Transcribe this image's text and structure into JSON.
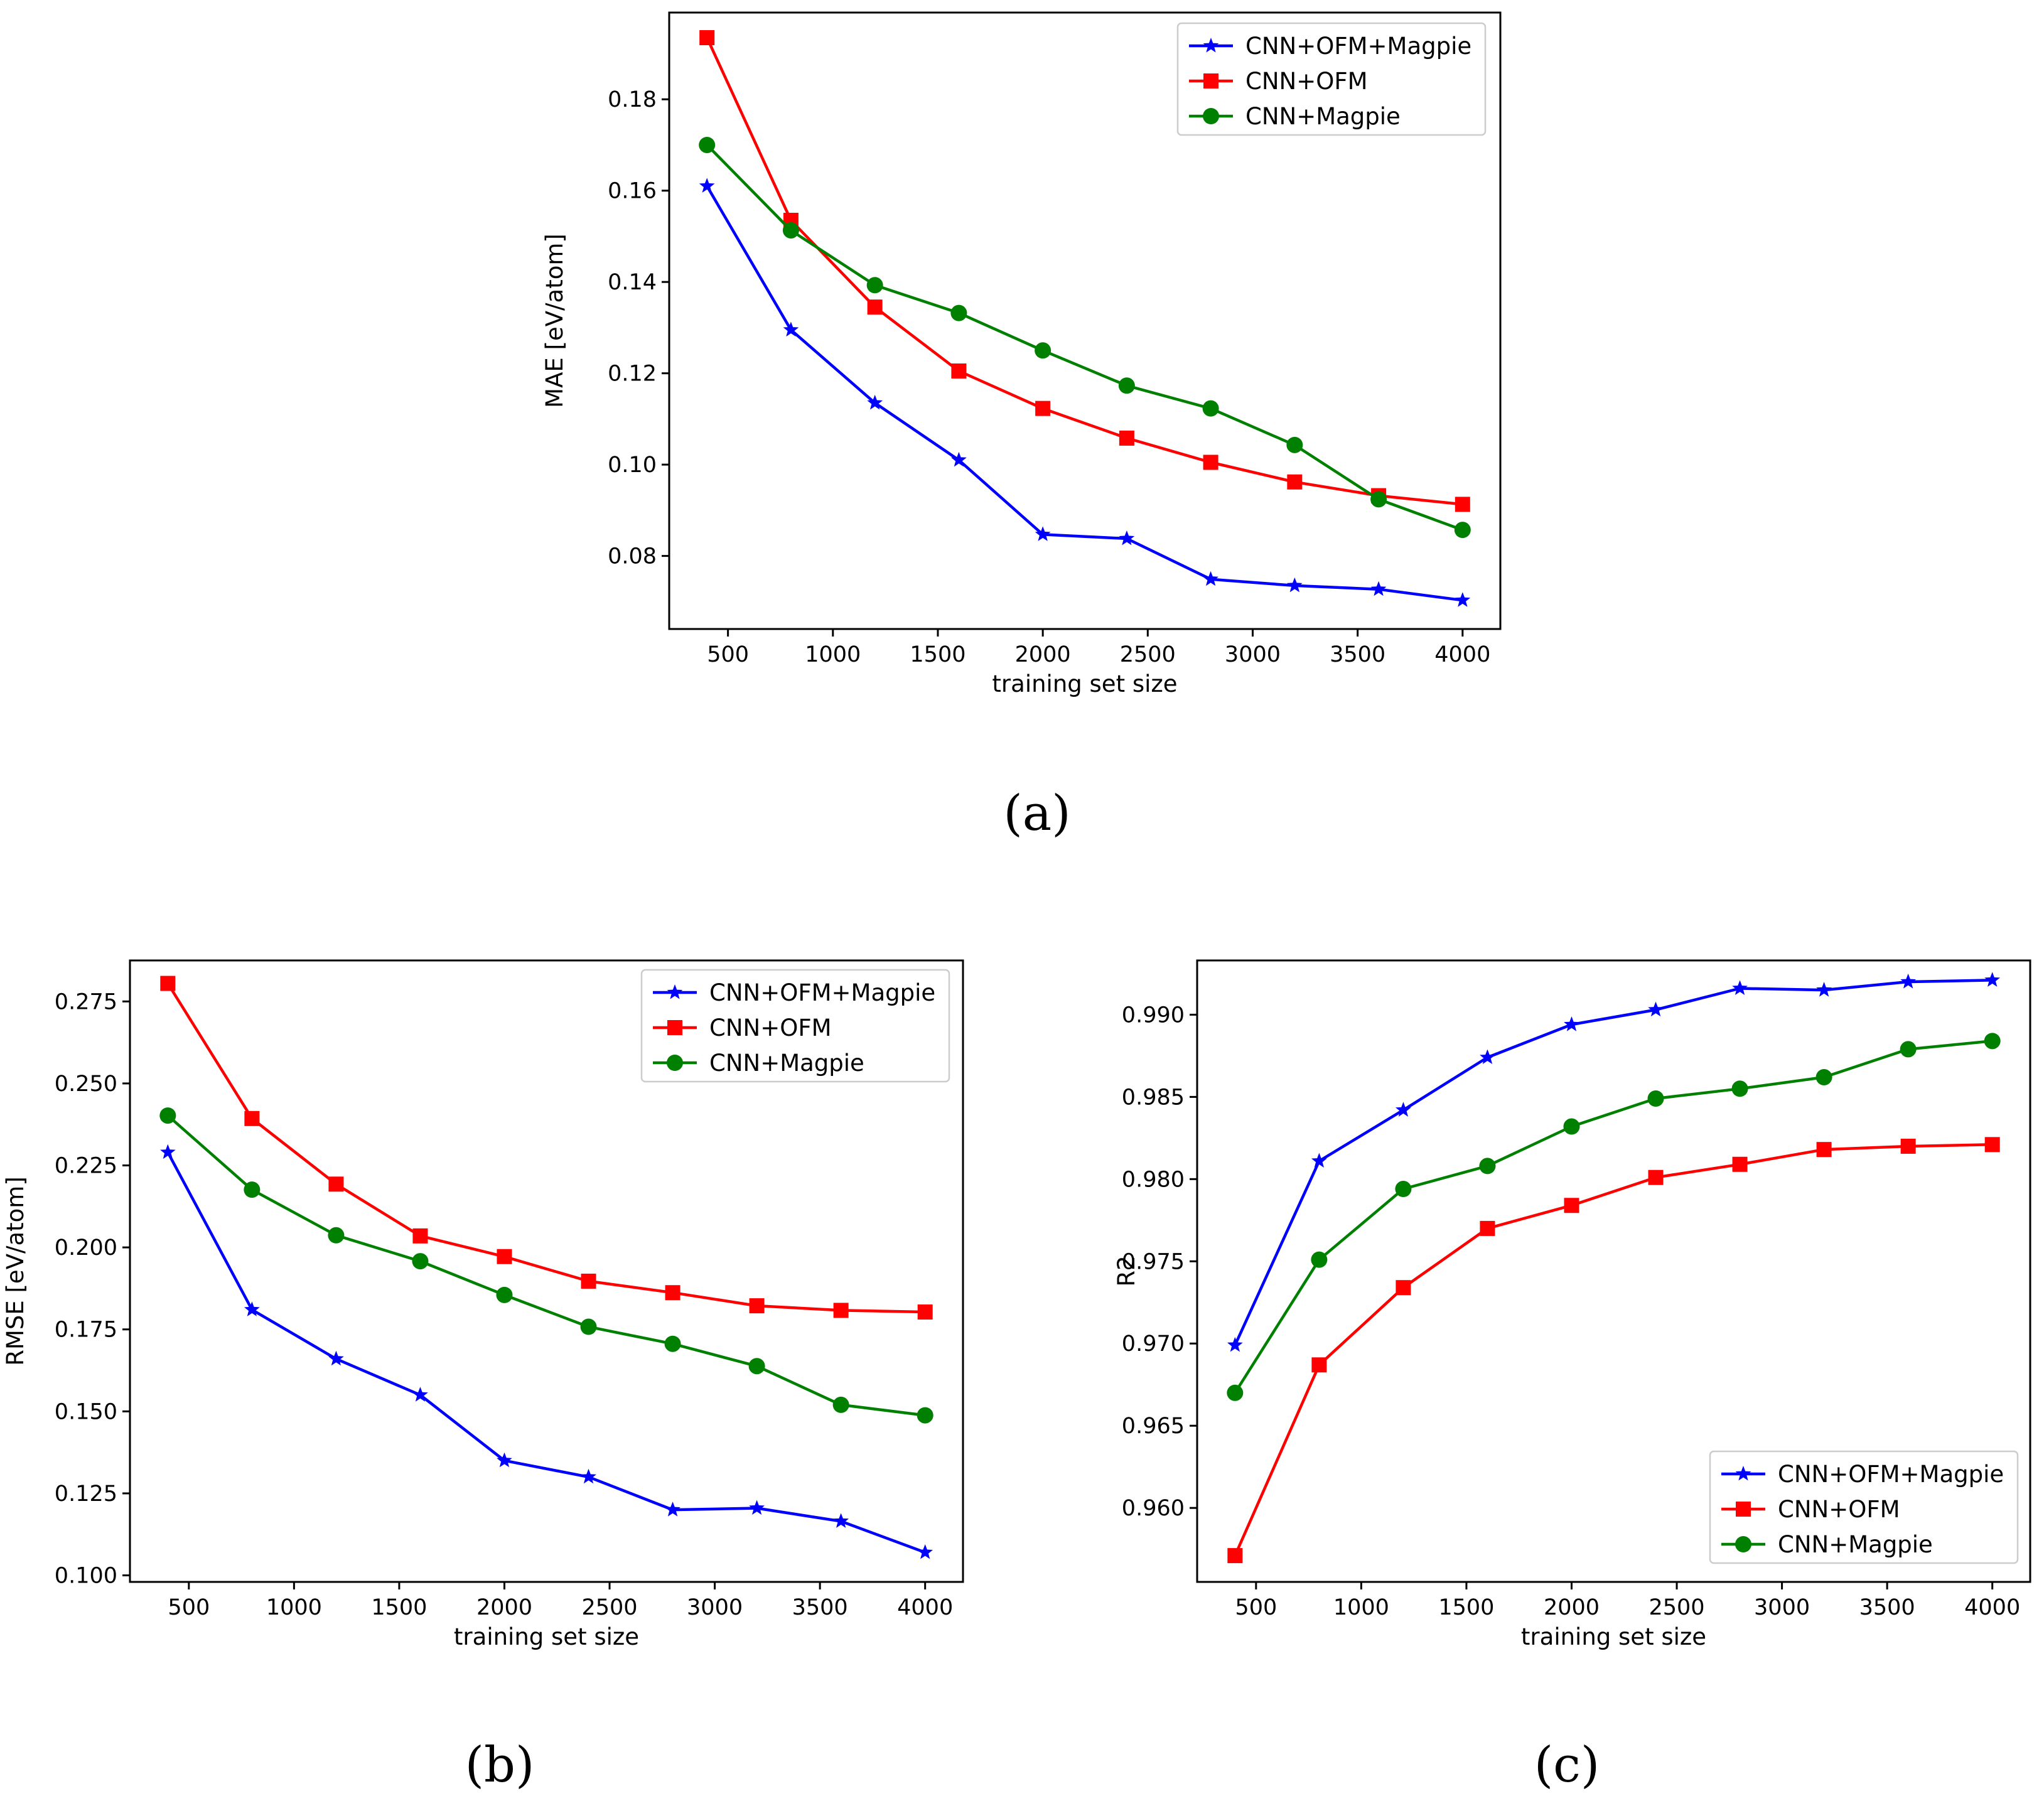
{
  "figure": {
    "panel_captions": [
      "(a)",
      "(b)",
      "(c)"
    ]
  },
  "styles": {
    "series_colors": {
      "CNN+OFM+Magpie": "#0000ff",
      "CNN+OFM": "#ff0000",
      "CNN+Magpie": "#008000"
    },
    "series_markers": {
      "CNN+OFM+Magpie": "star",
      "CNN+OFM": "square",
      "CNN+Magpie": "circle"
    },
    "axes_color": "#000000",
    "background": "#ffffff"
  },
  "chart_data": [
    {
      "id": "a",
      "caption": "(a)",
      "type": "line",
      "xlabel": "training set size",
      "ylabel": "MAE [eV/atom]",
      "xlim": [
        220,
        4180
      ],
      "ylim": [
        0.064,
        0.199
      ],
      "xticks": [
        500,
        1000,
        1500,
        2000,
        2500,
        3000,
        3500,
        4000
      ],
      "xtick_labels": [
        "500",
        "1000",
        "1500",
        "2000",
        "2500",
        "3000",
        "3500",
        "4000"
      ],
      "yticks": [
        0.08,
        0.1,
        0.12,
        0.14,
        0.16,
        0.18
      ],
      "ytick_labels": [
        "0.08",
        "0.10",
        "0.12",
        "0.14",
        "0.16",
        "0.18"
      ],
      "legend_position": "upper right",
      "x": [
        400,
        800,
        1200,
        1600,
        2000,
        2400,
        2800,
        3200,
        3600,
        4000
      ],
      "series": [
        {
          "name": "CNN+OFM+Magpie",
          "values": [
            0.161,
            0.1295,
            0.1135,
            0.101,
            0.0847,
            0.0838,
            0.0749,
            0.0735,
            0.0727,
            0.0703
          ]
        },
        {
          "name": "CNN+OFM",
          "values": [
            0.1935,
            0.1535,
            0.1345,
            0.1205,
            0.1123,
            0.1058,
            0.1005,
            0.0962,
            0.0932,
            0.0913
          ]
        },
        {
          "name": "CNN+Magpie",
          "values": [
            0.17,
            0.1513,
            0.1393,
            0.1332,
            0.125,
            0.1173,
            0.1123,
            0.1043,
            0.0924,
            0.0857
          ]
        }
      ]
    },
    {
      "id": "b",
      "caption": "(b)",
      "type": "line",
      "xlabel": "training set size",
      "ylabel": "RMSE [eV/atom]",
      "xlim": [
        220,
        4180
      ],
      "ylim": [
        0.098,
        0.2875
      ],
      "xticks": [
        500,
        1000,
        1500,
        2000,
        2500,
        3000,
        3500,
        4000
      ],
      "xtick_labels": [
        "500",
        "1000",
        "1500",
        "2000",
        "2500",
        "3000",
        "3500",
        "4000"
      ],
      "yticks": [
        0.1,
        0.125,
        0.15,
        0.175,
        0.2,
        0.225,
        0.25,
        0.275
      ],
      "ytick_labels": [
        "0.100",
        "0.125",
        "0.150",
        "0.175",
        "0.200",
        "0.225",
        "0.250",
        "0.275"
      ],
      "legend_position": "upper right",
      "x": [
        400,
        800,
        1200,
        1600,
        2000,
        2400,
        2800,
        3200,
        3600,
        4000
      ],
      "series": [
        {
          "name": "CNN+OFM+Magpie",
          "values": [
            0.229,
            0.181,
            0.166,
            0.155,
            0.135,
            0.13,
            0.12,
            0.1205,
            0.1165,
            0.107
          ]
        },
        {
          "name": "CNN+OFM",
          "values": [
            0.2805,
            0.2393,
            0.2193,
            0.2035,
            0.1972,
            0.1897,
            0.1862,
            0.1822,
            0.1808,
            0.1803
          ]
        },
        {
          "name": "CNN+Magpie",
          "values": [
            0.2402,
            0.2176,
            0.2037,
            0.1958,
            0.1855,
            0.1758,
            0.1706,
            0.1638,
            0.152,
            0.1488
          ]
        }
      ]
    },
    {
      "id": "c",
      "caption": "(c)",
      "type": "line",
      "xlabel": "training set size",
      "ylabel": "R2",
      "xlim": [
        220,
        4180
      ],
      "ylim": [
        0.9555,
        0.9933
      ],
      "xticks": [
        500,
        1000,
        1500,
        2000,
        2500,
        3000,
        3500,
        4000
      ],
      "xtick_labels": [
        "500",
        "1000",
        "1500",
        "2000",
        "2500",
        "3000",
        "3500",
        "4000"
      ],
      "yticks": [
        0.96,
        0.965,
        0.97,
        0.975,
        0.98,
        0.985,
        0.99
      ],
      "ytick_labels": [
        "0.960",
        "0.965",
        "0.970",
        "0.975",
        "0.980",
        "0.985",
        "0.990"
      ],
      "legend_position": "lower right",
      "x": [
        400,
        800,
        1200,
        1600,
        2000,
        2400,
        2800,
        3200,
        3600,
        4000
      ],
      "series": [
        {
          "name": "CNN+OFM+Magpie",
          "values": [
            0.9699,
            0.9811,
            0.9842,
            0.9874,
            0.9894,
            0.9903,
            0.9916,
            0.9915,
            0.992,
            0.9921
          ]
        },
        {
          "name": "CNN+OFM",
          "values": [
            0.9571,
            0.9687,
            0.9734,
            0.977,
            0.9784,
            0.9801,
            0.9809,
            0.9818,
            0.982,
            0.9821
          ]
        },
        {
          "name": "CNN+Magpie",
          "values": [
            0.967,
            0.9751,
            0.9794,
            0.9808,
            0.9832,
            0.9849,
            0.9855,
            0.9862,
            0.9879,
            0.9884
          ]
        }
      ]
    }
  ]
}
